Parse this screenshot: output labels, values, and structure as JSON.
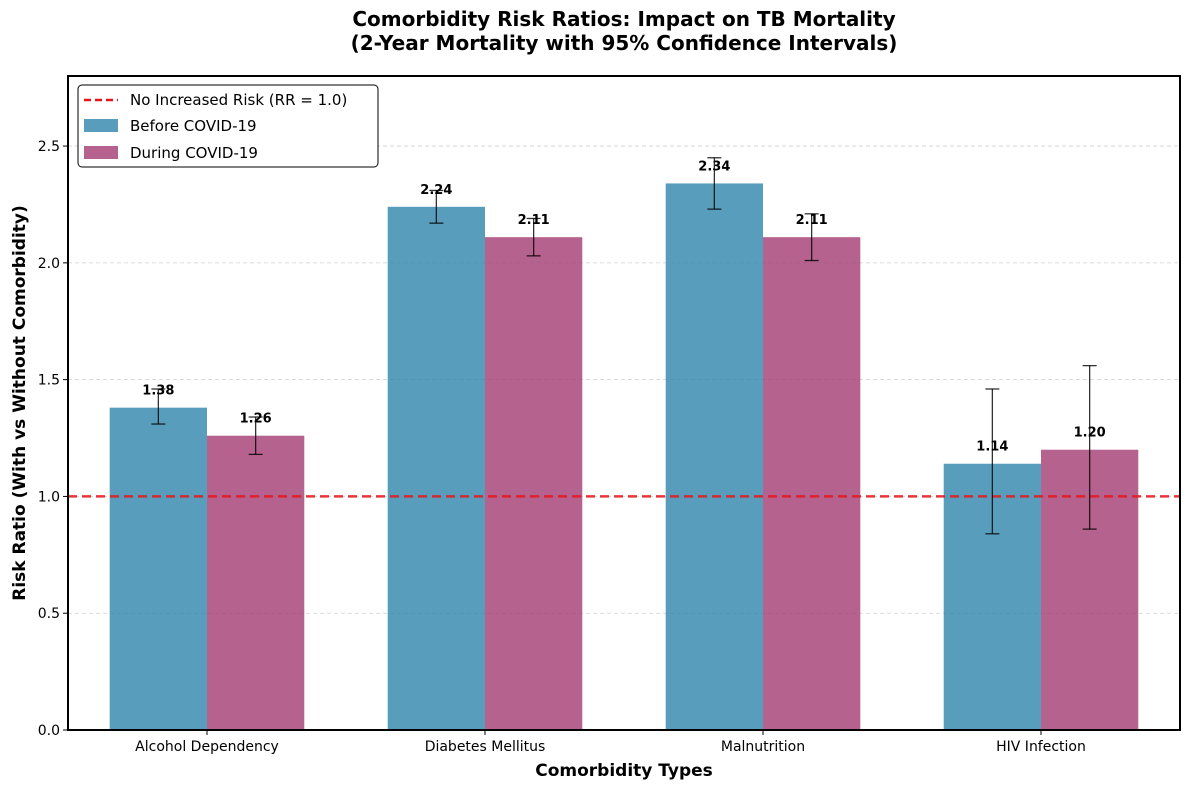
{
  "chart_data": {
    "type": "bar",
    "title": "Comorbidity Risk Ratios: Impact on TB Mortality",
    "subtitle": "(2-Year Mortality with 95% Confidence Intervals)",
    "xlabel": "Comorbidity Types",
    "ylabel": "Risk Ratio (With vs Without Comorbidity)",
    "ylim": [
      0,
      2.8
    ],
    "yticks": [
      "0.0",
      "0.5",
      "1.0",
      "1.5",
      "2.0",
      "2.5"
    ],
    "grid": "y-dashed",
    "legend_position": "top-left",
    "categories": [
      "Alcohol Dependency",
      "Diabetes Mellitus",
      "Malnutrition",
      "HIV Infection"
    ],
    "series": [
      {
        "name": "Before COVID-19",
        "color": "#2E86AB",
        "values": [
          1.38,
          2.24,
          2.34,
          1.14
        ],
        "labels": [
          "1.38",
          "2.24",
          "2.34",
          "1.14"
        ],
        "ci_low": [
          1.31,
          2.17,
          2.23,
          0.84
        ],
        "ci_high": [
          1.46,
          2.31,
          2.45,
          1.46
        ]
      },
      {
        "name": "During COVID-19",
        "color": "#A23B72",
        "values": [
          1.26,
          2.11,
          2.11,
          1.2
        ],
        "labels": [
          "1.26",
          "2.11",
          "2.11",
          "1.20"
        ],
        "ci_low": [
          1.18,
          2.03,
          2.01,
          0.86
        ],
        "ci_high": [
          1.34,
          2.19,
          2.21,
          1.56
        ]
      }
    ],
    "reference_line": {
      "value": 1.0,
      "label": "No Increased Risk (RR = 1.0)",
      "color": "#E8161B"
    }
  }
}
